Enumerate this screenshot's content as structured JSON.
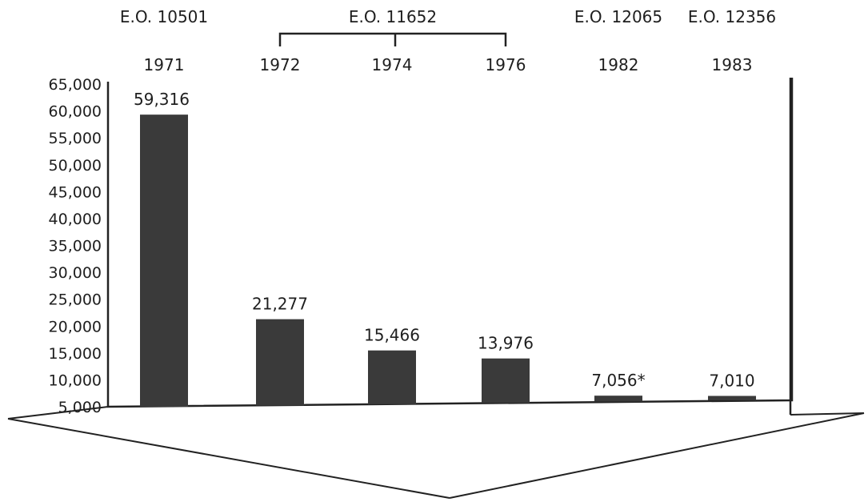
{
  "chart_data": {
    "type": "bar",
    "categories": [
      "1971",
      "1972",
      "1974",
      "1976",
      "1982",
      "1983"
    ],
    "values": [
      59316,
      21277,
      15466,
      13976,
      7056,
      7010
    ],
    "value_labels": [
      "59,316",
      "21,277",
      "15,466",
      "13,976",
      "7,056*",
      "7,010"
    ],
    "ylim": [
      5000,
      65000
    ],
    "yticks": [
      "5,000",
      "10,000",
      "15,000",
      "20,000",
      "25,000",
      "30,000",
      "35,000",
      "40,000",
      "45,000",
      "50,000",
      "55,000",
      "60,000",
      "65,000"
    ],
    "ytick_values": [
      5000,
      10000,
      15000,
      20000,
      25000,
      30000,
      35000,
      40000,
      45000,
      50000,
      55000,
      60000,
      65000
    ],
    "grid": false,
    "bar_color": "#3a3a3a",
    "executive_orders": [
      {
        "label": "E.O. 10501",
        "categories": [
          "1971"
        ]
      },
      {
        "label": "E.O. 11652",
        "categories": [
          "1972",
          "1974",
          "1976"
        ]
      },
      {
        "label": "E.O. 12065",
        "categories": [
          "1982"
        ]
      },
      {
        "label": "E.O. 12356",
        "categories": [
          "1983"
        ]
      }
    ]
  }
}
